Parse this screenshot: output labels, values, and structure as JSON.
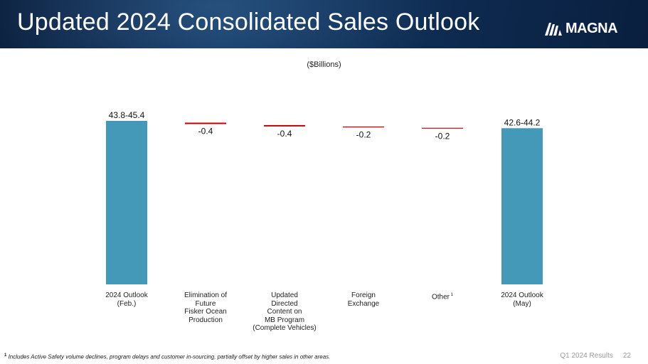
{
  "header": {
    "title": "Updated 2024 Consolidated Sales Outlook",
    "logo_text": "MAGNA"
  },
  "footer": {
    "footnote_marker": "1",
    "footnote": "Includes  Active Safety volume declines, program delays and customer in-sourcing, partially offset by higher sales in other areas.",
    "section": "Q1 2024 Results",
    "page_number": "22"
  },
  "colors": {
    "bar": "#4499b9",
    "decrease": "#c00000",
    "header": "#0e2c52"
  },
  "chart_data": {
    "type": "bar",
    "subtype": "waterfall",
    "unit_label": "($Billions)",
    "categories": [
      {
        "lines": [
          "2024 Outlook",
          "(Feb.)"
        ],
        "superscript": ""
      },
      {
        "lines": [
          "Elimination of",
          "Future",
          "Fisker Ocean",
          "Production"
        ],
        "superscript": ""
      },
      {
        "lines": [
          "Updated",
          "Directed",
          "Content on",
          "MB Program",
          "(Complete Vehicles)"
        ],
        "superscript": ""
      },
      {
        "lines": [
          "Foreign",
          "Exchange"
        ],
        "superscript": ""
      },
      {
        "lines": [
          "Other"
        ],
        "superscript": "1"
      },
      {
        "lines": [
          "2024 Outlook",
          "(May)"
        ],
        "superscript": ""
      }
    ],
    "steps": [
      {
        "kind": "total",
        "value": 44.6,
        "label": "43.8-45.4"
      },
      {
        "kind": "delta",
        "value": -0.4,
        "label": "-0.4"
      },
      {
        "kind": "delta",
        "value": -0.4,
        "label": "-0.4"
      },
      {
        "kind": "delta",
        "value": -0.2,
        "label": "-0.2"
      },
      {
        "kind": "delta",
        "value": -0.2,
        "label": "-0.2"
      },
      {
        "kind": "total",
        "value": 43.4,
        "label": "42.6-44.2"
      }
    ],
    "grid": false,
    "legend": "none"
  }
}
